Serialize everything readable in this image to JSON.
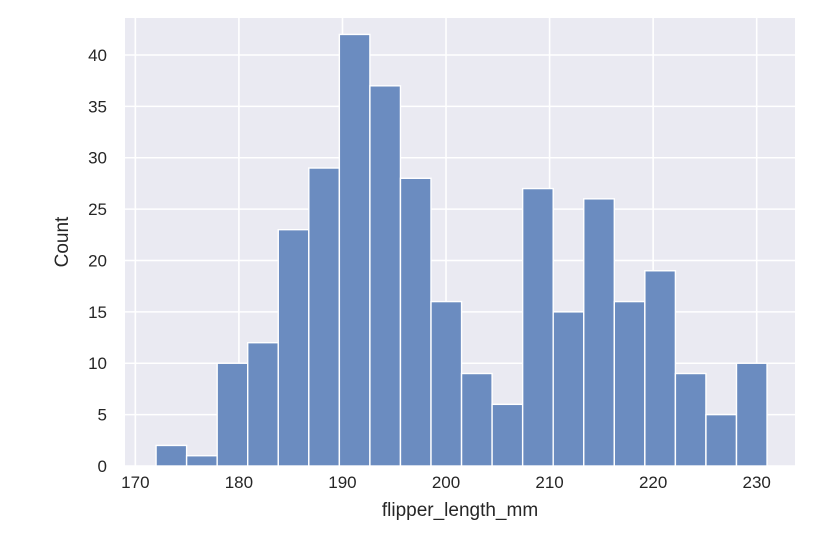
{
  "chart_data": {
    "type": "bar",
    "subtype": "histogram",
    "xlabel": "flipper_length_mm",
    "ylabel": "Count",
    "xlim": [
      169.0,
      233.7
    ],
    "ylim": [
      0,
      43.6
    ],
    "x_ticks": [
      170,
      180,
      190,
      200,
      210,
      220,
      230
    ],
    "y_ticks": [
      0,
      5,
      10,
      15,
      20,
      25,
      30,
      35,
      40
    ],
    "grid": true,
    "bar_color": "#6b8cc0",
    "background_color": "#eaeaf2",
    "bins": [
      {
        "x0": 172.0,
        "x1": 174.95,
        "count": 2
      },
      {
        "x0": 174.95,
        "x1": 177.9,
        "count": 1
      },
      {
        "x0": 177.9,
        "x1": 180.85,
        "count": 10
      },
      {
        "x0": 180.85,
        "x1": 183.8,
        "count": 12
      },
      {
        "x0": 183.8,
        "x1": 186.75,
        "count": 23
      },
      {
        "x0": 186.75,
        "x1": 189.7,
        "count": 29
      },
      {
        "x0": 189.7,
        "x1": 192.65,
        "count": 42
      },
      {
        "x0": 192.65,
        "x1": 195.6,
        "count": 37
      },
      {
        "x0": 195.6,
        "x1": 198.55,
        "count": 28
      },
      {
        "x0": 198.55,
        "x1": 201.5,
        "count": 16
      },
      {
        "x0": 201.5,
        "x1": 204.45,
        "count": 9
      },
      {
        "x0": 204.45,
        "x1": 207.4,
        "count": 6
      },
      {
        "x0": 207.4,
        "x1": 210.35,
        "count": 27
      },
      {
        "x0": 210.35,
        "x1": 213.3,
        "count": 15
      },
      {
        "x0": 213.3,
        "x1": 216.25,
        "count": 26
      },
      {
        "x0": 216.25,
        "x1": 219.2,
        "count": 16
      },
      {
        "x0": 219.2,
        "x1": 222.15,
        "count": 19
      },
      {
        "x0": 222.15,
        "x1": 225.1,
        "count": 9
      },
      {
        "x0": 225.1,
        "x1": 228.05,
        "count": 5
      },
      {
        "x0": 228.05,
        "x1": 231.0,
        "count": 10
      }
    ]
  }
}
